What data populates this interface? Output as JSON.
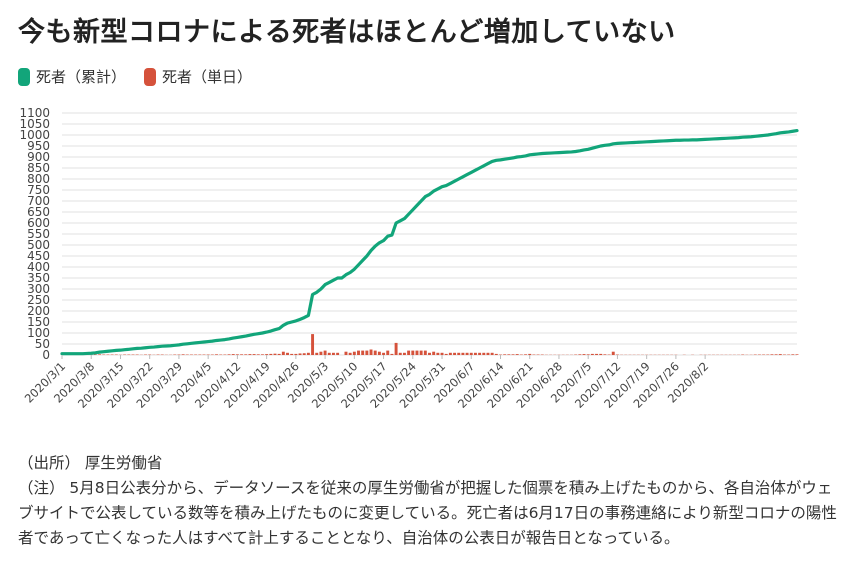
{
  "title": "今も新型コロナによる死者はほとんど増加していない",
  "legend": [
    {
      "label": "死者（累計）",
      "color": "#12a57a"
    },
    {
      "label": "死者（単日）",
      "color": "#d5523b"
    }
  ],
  "notes": {
    "source": "（出所） 厚生労働省",
    "note": "（注） 5月8日公表分から、データソースを従来の厚生労働省が把握した個票を積み上げたものから、各自治体がウェブサイトで公表している数等を積み上げたものに変更している。死亡者は6月17日の事務連絡により新型コロナの陽性者であって亡くなった人はすべて計上することとなり、自治体の公表日が報告日となっている。"
  },
  "chart_data": {
    "type": "bar+line",
    "x_labels": [
      "2020/3/1",
      "2020/3/8",
      "2020/3/15",
      "2020/3/22",
      "2020/3/29",
      "2020/4/5",
      "2020/4/12",
      "2020/4/19",
      "2020/4/26",
      "2020/5/3",
      "2020/5/10",
      "2020/5/17",
      "2020/5/24",
      "2020/5/31",
      "2020/6/7",
      "2020/6/14",
      "2020/6/21",
      "2020/6/28",
      "2020/7/5",
      "2020/7/12",
      "2020/7/19",
      "2020/7/26",
      "2020/8/2"
    ],
    "y_ticks": [
      0,
      50,
      100,
      150,
      200,
      250,
      300,
      350,
      400,
      450,
      500,
      550,
      600,
      650,
      700,
      750,
      800,
      850,
      900,
      950,
      1000,
      1050,
      1100
    ],
    "ylim": [
      0,
      1100
    ],
    "grid": true,
    "series": [
      {
        "name": "死者（累計）",
        "type": "line",
        "color": "#12a57a",
        "values": [
          6,
          6,
          6,
          6,
          6,
          6,
          7,
          8,
          10,
          13,
          15,
          17,
          19,
          21,
          22,
          24,
          26,
          28,
          30,
          31,
          33,
          35,
          36,
          38,
          40,
          41,
          42,
          44,
          46,
          49,
          51,
          53,
          55,
          57,
          59,
          61,
          63,
          66,
          68,
          70,
          73,
          77,
          80,
          83,
          86,
          90,
          94,
          97,
          100,
          104,
          109,
          115,
          120,
          135,
          145,
          150,
          155,
          162,
          170,
          180,
          275,
          285,
          300,
          320,
          330,
          340,
          350,
          350,
          365,
          375,
          390,
          410,
          430,
          450,
          475,
          495,
          510,
          520,
          540,
          545,
          600,
          610,
          620,
          640,
          660,
          680,
          700,
          720,
          730,
          745,
          755,
          765,
          770,
          780,
          790,
          800,
          810,
          820,
          830,
          840,
          850,
          860,
          870,
          880,
          885,
          887,
          890,
          893,
          896,
          900,
          902,
          905,
          910,
          912,
          914,
          916,
          917,
          918,
          919,
          920,
          921,
          922,
          923,
          925,
          928,
          932,
          935,
          940,
          945,
          950,
          953,
          955,
          960,
          962,
          963,
          964,
          965,
          966,
          967,
          968,
          969,
          970,
          971,
          972,
          973,
          974,
          975,
          976,
          976,
          977,
          977,
          978,
          978,
          979,
          980,
          981,
          982,
          983,
          984,
          985,
          986,
          987,
          988,
          990,
          991,
          992,
          994,
          996,
          998,
          1000,
          1003,
          1006,
          1010,
          1012,
          1014,
          1017,
          1020
        ]
      },
      {
        "name": "死者（単日）",
        "type": "bar",
        "color": "#d5523b",
        "values": [
          0,
          0,
          0,
          0,
          0,
          0,
          1,
          1,
          2,
          3,
          2,
          2,
          2,
          2,
          1,
          2,
          2,
          2,
          2,
          1,
          2,
          2,
          1,
          2,
          2,
          1,
          1,
          2,
          2,
          3,
          2,
          2,
          2,
          2,
          2,
          2,
          2,
          3,
          2,
          2,
          3,
          4,
          3,
          3,
          3,
          4,
          4,
          3,
          3,
          4,
          5,
          6,
          5,
          15,
          10,
          5,
          5,
          7,
          8,
          10,
          95,
          10,
          15,
          20,
          10,
          10,
          10,
          0,
          15,
          10,
          15,
          20,
          20,
          20,
          25,
          20,
          15,
          10,
          20,
          5,
          55,
          10,
          10,
          20,
          20,
          20,
          20,
          20,
          10,
          15,
          10,
          10,
          5,
          10,
          10,
          10,
          10,
          10,
          10,
          10,
          10,
          10,
          10,
          10,
          5,
          2,
          3,
          3,
          3,
          4,
          2,
          3,
          5,
          2,
          2,
          2,
          1,
          1,
          1,
          1,
          1,
          1,
          1,
          2,
          3,
          4,
          3,
          5,
          5,
          5,
          3,
          2,
          15,
          2,
          1,
          1,
          1,
          1,
          1,
          1,
          1,
          1,
          1,
          1,
          1,
          1,
          1,
          1,
          0,
          1,
          0,
          1,
          0,
          1,
          1,
          1,
          1,
          1,
          1,
          1,
          1,
          1,
          1,
          2,
          1,
          1,
          2,
          2,
          2,
          2,
          3,
          3,
          4,
          2,
          2,
          3,
          3
        ]
      }
    ]
  }
}
